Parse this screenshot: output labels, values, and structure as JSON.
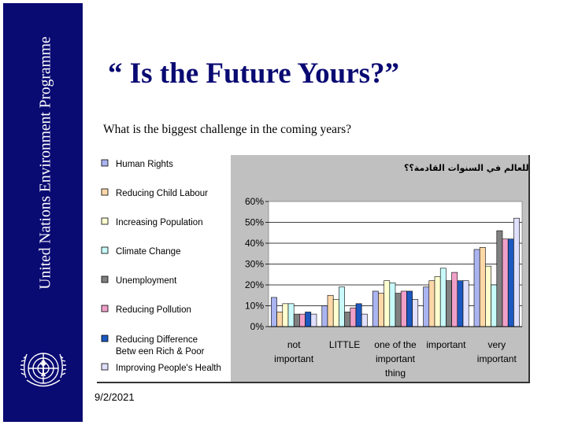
{
  "sidebar": {
    "text": "United Nations Environment Programme"
  },
  "slide": {
    "title": "“ Is the Future Yours?”",
    "subtitle": "What is the biggest challenge in the coming years?",
    "date": "9/2/2021"
  },
  "chart_data": {
    "type": "bar",
    "title": "ماهو التحدي الاكبر للعالم في السنوات القادمة؟؟",
    "categories": [
      [
        "not",
        "important"
      ],
      [
        "LITTLE"
      ],
      [
        "one of the",
        "important",
        "thing"
      ],
      [
        "important"
      ],
      [
        "very",
        "important"
      ]
    ],
    "ylim": [
      0,
      60
    ],
    "yticks": [
      "0%",
      "10%",
      "20%",
      "30%",
      "40%",
      "50%",
      "60%"
    ],
    "series": [
      {
        "name": "Human Rights",
        "color": "#aab4f0",
        "values": [
          14,
          10,
          17,
          19,
          37
        ]
      },
      {
        "name": "Reducing Child Labour",
        "color": "#ffd8a8",
        "values": [
          7,
          15,
          16,
          22,
          38
        ]
      },
      {
        "name": "Increasing Population",
        "color": "#ffffd0",
        "values": [
          11,
          13,
          22,
          24,
          29
        ]
      },
      {
        "name": "Climate Change",
        "color": "#c8fafa",
        "values": [
          11,
          19,
          21,
          28,
          20
        ]
      },
      {
        "name": "Unemployment",
        "color": "#808080",
        "values": [
          6,
          7,
          16,
          22,
          46
        ]
      },
      {
        "name": "Reducing Pollution",
        "color": "#f0a0c8",
        "values": [
          6,
          9,
          17,
          26,
          42
        ]
      },
      {
        "name": "Reducing Difference Between Rich & Poor",
        "color": "#1c58c0",
        "values": [
          7,
          11,
          17,
          22,
          42
        ]
      },
      {
        "name": "Improving People's Health",
        "color": "#e0e0ff",
        "values": [
          6,
          6,
          13,
          22,
          52
        ]
      }
    ],
    "legend_position": "left",
    "grid": true
  }
}
